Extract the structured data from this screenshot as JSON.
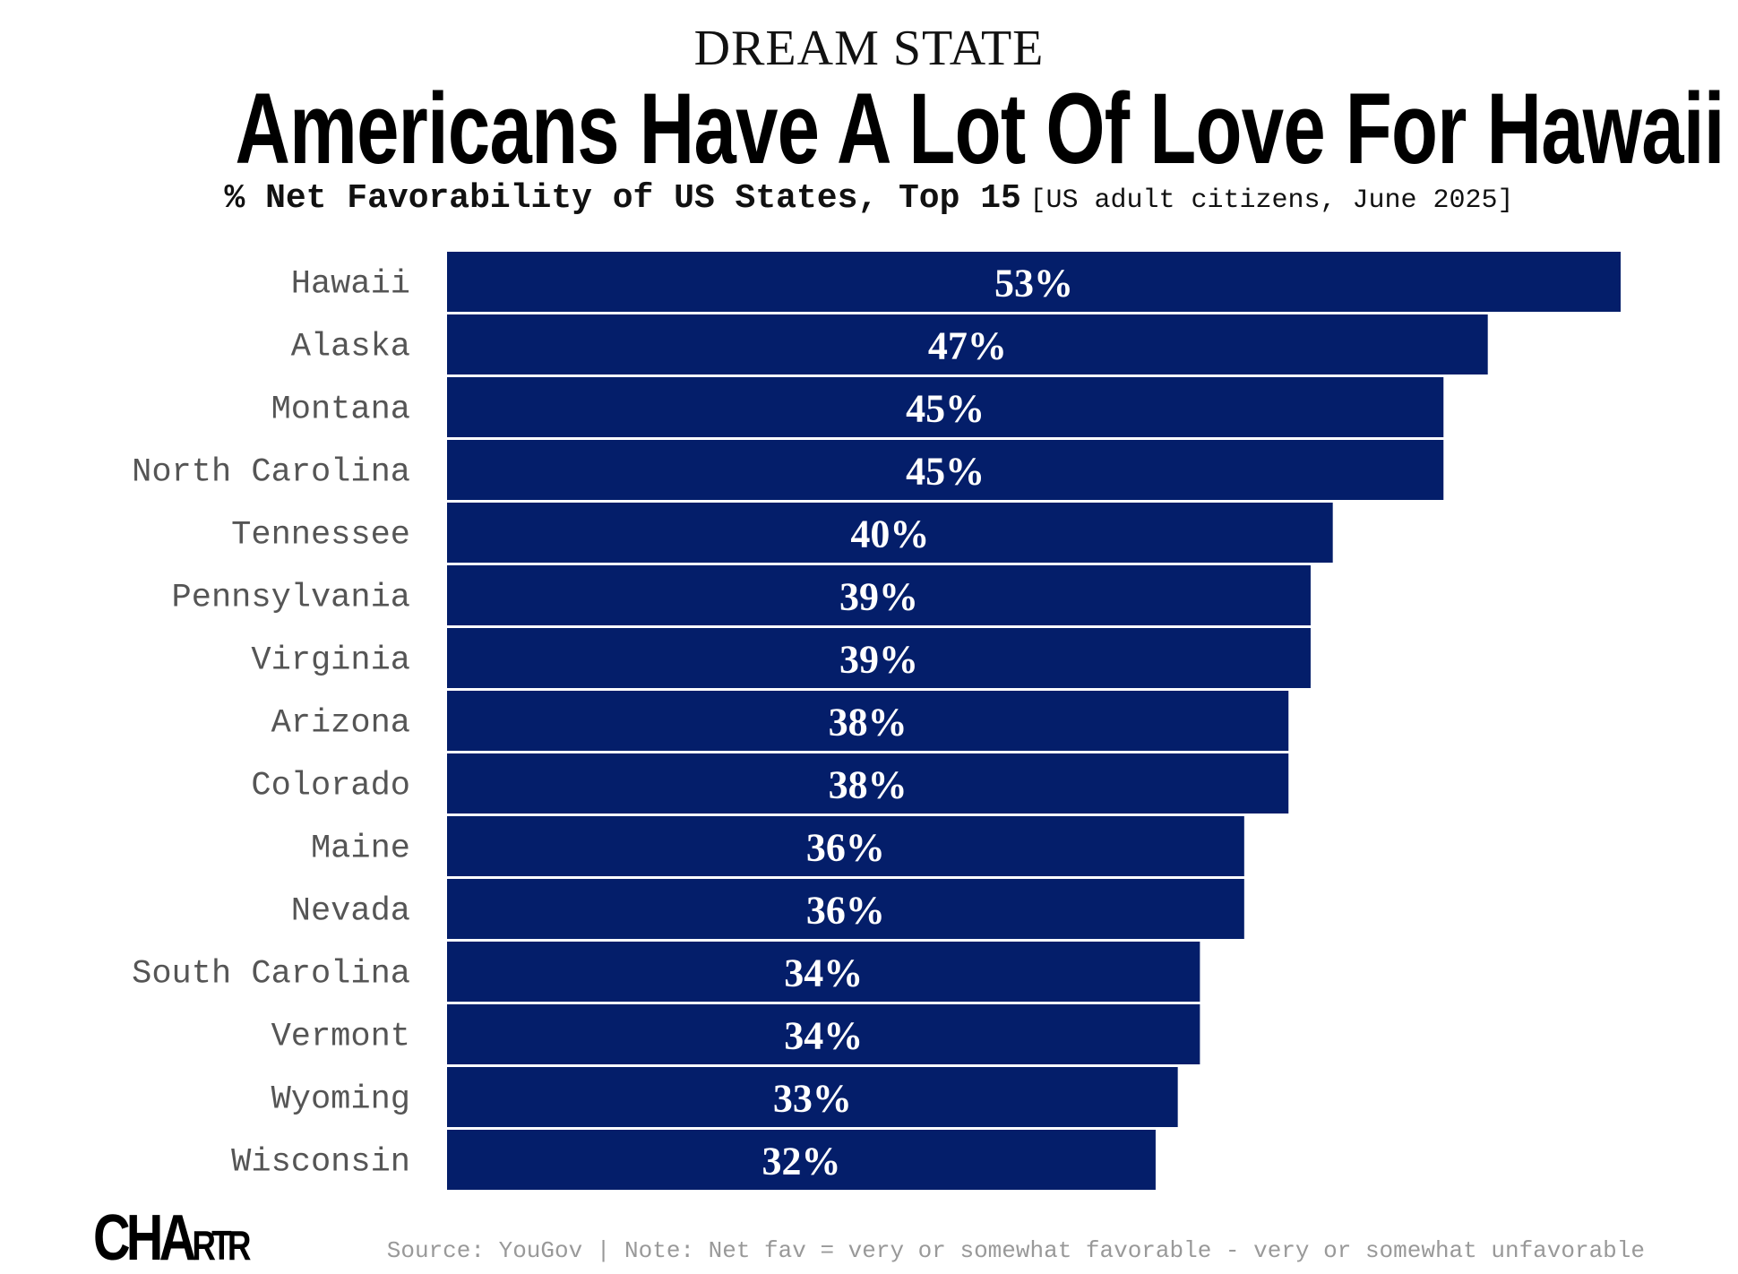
{
  "header": {
    "kicker": "DREAM STATE",
    "title": "Americans Have A Lot Of Love For Hawaii",
    "subtitle": "% Net Favorability of US States, Top 15",
    "subtitle_note": "[US adult citizens, June 2025]"
  },
  "chart_data": {
    "type": "bar",
    "orientation": "horizontal",
    "title": "Americans Have A Lot Of Love For Hawaii",
    "subtitle": "% Net Favorability of US States, Top 15",
    "categories": [
      "Hawaii",
      "Alaska",
      "Montana",
      "North Carolina",
      "Tennessee",
      "Pennsylvania",
      "Virginia",
      "Arizona",
      "Colorado",
      "Maine",
      "Nevada",
      "South Carolina",
      "Vermont",
      "Wyoming",
      "Wisconsin"
    ],
    "values": [
      53,
      47,
      45,
      45,
      40,
      39,
      39,
      38,
      38,
      36,
      36,
      34,
      34,
      33,
      32
    ],
    "data_labels": [
      "53%",
      "47%",
      "45%",
      "45%",
      "40%",
      "39%",
      "39%",
      "38%",
      "38%",
      "36%",
      "36%",
      "34%",
      "34%",
      "33%",
      "32%"
    ],
    "xlabel": "",
    "ylabel": "",
    "xlim": [
      0,
      53
    ],
    "grid": false,
    "legend": "none",
    "bar_color": "#041E6A",
    "label_color": "#FFFFFF"
  },
  "footer": {
    "logo": "CHARTR",
    "source": "Source: YouGov | Note: Net fav = very or somewhat favorable - very or somewhat unfavorable"
  }
}
